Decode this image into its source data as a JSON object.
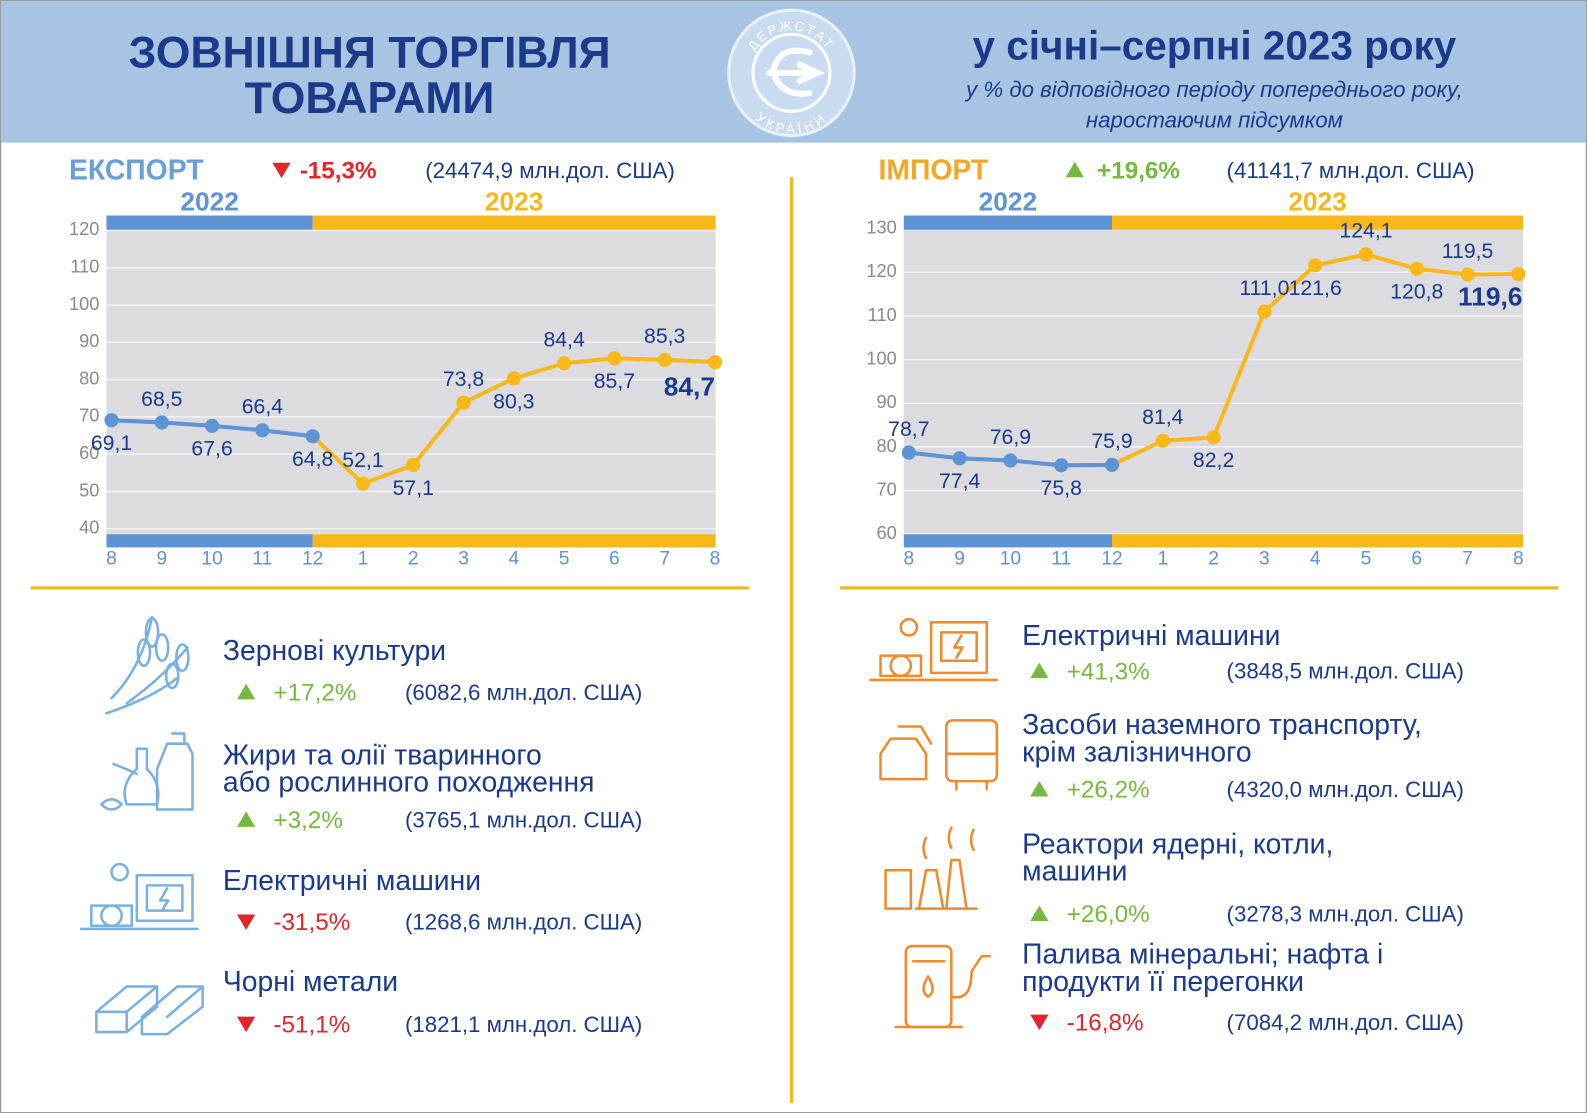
{
  "header": {
    "title": [
      "ЗОВНІШНЯ ТОРГІВЛЯ",
      "ТОВАРАМИ"
    ],
    "period": "у січні–серпні 2023 року",
    "subtitle": [
      "у % до відповідного періоду попереднього року,",
      "наростаючим підсумком"
    ],
    "logo": [
      "ДЕРЖСТАТ",
      "УКРАЇНИ"
    ]
  },
  "chart_data": [
    {
      "type": "line",
      "title": "ЕКСПОРТ",
      "title_color": "#6a9fd6",
      "change": "-15,3%",
      "amount": "(24474,9 млн.дол. США)",
      "categories": [
        "8",
        "9",
        "10",
        "11",
        "12",
        "1",
        "2",
        "3",
        "4",
        "5",
        "6",
        "7",
        "8"
      ],
      "series": [
        {
          "name": "2022",
          "color": "#5e93d4",
          "values": [
            69.1,
            68.5,
            67.6,
            66.4,
            64.8,
            null,
            null,
            null,
            null,
            null,
            null,
            null,
            null
          ],
          "value_labels": [
            "69,1",
            "68,5",
            "67,6",
            "66,4",
            "64,8",
            null,
            null,
            null,
            null,
            null,
            null,
            null,
            null
          ]
        },
        {
          "name": "2023",
          "color": "#f8b819",
          "values": [
            null,
            null,
            null,
            null,
            null,
            52.1,
            57.1,
            73.8,
            80.3,
            84.4,
            85.7,
            85.3,
            84.7
          ],
          "value_labels": [
            null,
            null,
            null,
            null,
            null,
            "52,1",
            "57,1",
            "73,8",
            "80,3",
            "84,4",
            "85,7",
            "85,3",
            "84,7"
          ]
        }
      ],
      "ylim": [
        35,
        124
      ],
      "yticks": [
        40,
        50,
        60,
        70,
        80,
        90,
        100,
        110,
        120
      ],
      "grid": true
    },
    {
      "type": "line",
      "title": "ІМПОРТ",
      "title_color": "#f5a623",
      "change": "+19,6%",
      "amount": "(41141,7 млн.дол. США)",
      "categories": [
        "8",
        "9",
        "10",
        "11",
        "12",
        "1",
        "2",
        "3",
        "4",
        "5",
        "6",
        "7",
        "8"
      ],
      "series": [
        {
          "name": "2022",
          "color": "#5e93d4",
          "values": [
            78.7,
            77.4,
            76.9,
            75.8,
            75.9,
            null,
            null,
            null,
            null,
            null,
            null,
            null,
            null
          ],
          "value_labels": [
            "78,7",
            "77,4",
            "76,9",
            "75,8",
            "75,9",
            null,
            null,
            null,
            null,
            null,
            null,
            null,
            null
          ]
        },
        {
          "name": "2023",
          "color": "#f8b819",
          "values": [
            null,
            null,
            null,
            null,
            null,
            81.4,
            82.2,
            111,
            121.6,
            124.1,
            120.8,
            119.5,
            119.6
          ],
          "value_labels": [
            null,
            null,
            null,
            null,
            null,
            "81,4",
            "82,2",
            "111,0",
            "121,6",
            "124,1",
            "120,8",
            "119,5",
            "119,6"
          ]
        }
      ],
      "ylim": [
        57,
        133
      ],
      "yticks": [
        60,
        70,
        80,
        90,
        100,
        110,
        120,
        130
      ],
      "grid": true
    }
  ],
  "export_items": [
    {
      "label": [
        "Зернові культури"
      ],
      "change": "+17,2%",
      "amount": "(6082,6 млн.дол. США)"
    },
    {
      "label": [
        "Жири та олії тваринного",
        "або рослинного походження"
      ],
      "change": "+3,2%",
      "amount": "(3765,1 млн.дол. США)"
    },
    {
      "label": [
        "Електричні машини"
      ],
      "change": "-31,5%",
      "amount": "(1268,6 млн.дол. США)"
    },
    {
      "label": [
        "Чорні метали"
      ],
      "change": "-51,1%",
      "amount": "(1821,1 млн.дол. США)"
    }
  ],
  "import_items": [
    {
      "label": [
        "Електричні машини"
      ],
      "change": "+41,3%",
      "amount": "(3848,5 млн.дол. США)"
    },
    {
      "label": [
        "Засоби наземного транспорту,",
        "крім залізничного"
      ],
      "change": "+26,2%",
      "amount": "(4320,0 млн.дол. США)"
    },
    {
      "label": [
        "Реактори ядерні, котли,",
        "машини"
      ],
      "change": "+26,0%",
      "amount": "(3278,3 млн.дол. США)"
    },
    {
      "label": [
        "Палива мінеральні; нафта і",
        "продукти її перегонки"
      ],
      "change": "-16,8%",
      "amount": "(7084,2 млн.дол. США)"
    }
  ]
}
